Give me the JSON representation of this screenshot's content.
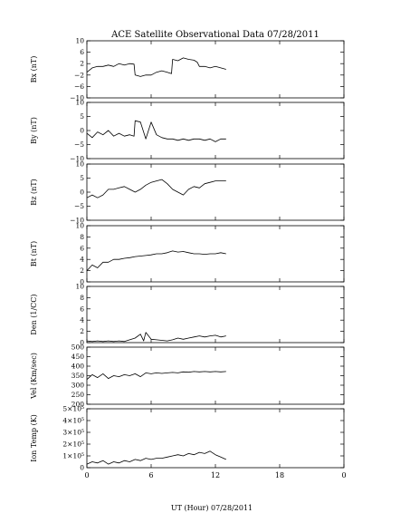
{
  "title": "ACE Satellite Observational Data   07/28/2011",
  "xlabel": "UT (Hour)   07/28/2011",
  "xaxis": {
    "range": [
      0,
      24
    ],
    "ticks": [
      0,
      6,
      12,
      18,
      0
    ],
    "tick_values": [
      0,
      6,
      12,
      18,
      24
    ]
  },
  "chart_data": [
    {
      "type": "line",
      "ylabel": "Bx (nT)",
      "ylim": [
        -10,
        10
      ],
      "yticks": [
        10,
        6,
        2,
        -2,
        -6,
        -10
      ],
      "ytick_labels": [
        "10",
        "6",
        "2",
        "−2",
        "−6",
        "−10"
      ],
      "x": [
        0,
        0.5,
        1,
        1.5,
        2,
        2.5,
        3,
        3.5,
        4,
        4.4,
        4.5,
        5,
        5.5,
        6,
        6.5,
        7,
        7.5,
        7.9,
        8,
        8.5,
        9,
        9.5,
        10,
        10.3,
        10.5,
        11,
        11.5,
        12,
        12.5,
        13
      ],
      "values": [
        -1,
        0.5,
        1,
        1,
        1.5,
        1,
        2,
        1.5,
        2,
        1.8,
        -2,
        -2.5,
        -2,
        -2,
        -1,
        -0.5,
        -1,
        -1.5,
        3.5,
        3,
        4,
        3.5,
        3.2,
        2.5,
        1,
        1,
        0.5,
        1,
        0.5,
        0
      ]
    },
    {
      "type": "line",
      "ylabel": "By (nT)",
      "ylim": [
        -10,
        10
      ],
      "yticks": [
        10,
        5,
        0,
        -5,
        -10
      ],
      "ytick_labels": [
        "10",
        "5",
        "0",
        "−5",
        "−10"
      ],
      "x": [
        0,
        0.5,
        1,
        1.5,
        2,
        2.5,
        3,
        3.5,
        4,
        4.4,
        4.5,
        5,
        5.5,
        6,
        6.5,
        7,
        7.5,
        8,
        8.5,
        9,
        9.5,
        10,
        10.5,
        11,
        11.5,
        12,
        12.5,
        13
      ],
      "values": [
        -1,
        -2.5,
        -0.5,
        -1.5,
        0,
        -2,
        -1,
        -2,
        -1.5,
        -2,
        3.5,
        3,
        -3,
        3,
        -1.5,
        -2.5,
        -3,
        -3,
        -3.5,
        -3,
        -3.5,
        -3,
        -3,
        -3.5,
        -3,
        -4,
        -3,
        -3
      ]
    },
    {
      "type": "line",
      "ylabel": "Bz (nT)",
      "ylim": [
        -10,
        10
      ],
      "yticks": [
        10,
        5,
        0,
        -5,
        -10
      ],
      "ytick_labels": [
        "10",
        "5",
        "0",
        "−5",
        "−10"
      ],
      "x": [
        0,
        0.5,
        1,
        1.5,
        2,
        2.5,
        3,
        3.5,
        4,
        4.5,
        5,
        5.5,
        6,
        6.5,
        7,
        7.5,
        8,
        8.5,
        9,
        9.5,
        10,
        10.5,
        11,
        11.5,
        12,
        12.5,
        13
      ],
      "values": [
        -2,
        -1,
        -2,
        -1,
        1,
        1,
        1.5,
        2,
        1,
        0,
        1,
        2.5,
        3.5,
        4,
        4.5,
        3,
        1,
        0,
        -1,
        1,
        2,
        1.5,
        3,
        3.5,
        4,
        4,
        4
      ]
    },
    {
      "type": "line",
      "ylabel": "Bt (nT)",
      "ylim": [
        0,
        10
      ],
      "yticks": [
        10,
        8,
        6,
        4,
        2,
        0
      ],
      "ytick_labels": [
        "10",
        "8",
        "6",
        "4",
        "2",
        "0"
      ],
      "x": [
        0,
        0.5,
        1,
        1.5,
        2,
        2.5,
        3,
        3.5,
        4,
        4.5,
        5,
        5.5,
        6,
        6.5,
        7,
        7.5,
        8,
        8.5,
        9,
        9.5,
        10,
        10.5,
        11,
        11.5,
        12,
        12.5,
        13
      ],
      "values": [
        2,
        3,
        2.5,
        3.5,
        3.5,
        4,
        4,
        4.2,
        4.3,
        4.5,
        4.6,
        4.7,
        4.8,
        5,
        5,
        5.2,
        5.5,
        5.3,
        5.4,
        5.2,
        5,
        5,
        4.9,
        5,
        5,
        5.2,
        5
      ]
    },
    {
      "type": "line",
      "ylabel": "Den (1/CC)",
      "ylim": [
        0,
        10
      ],
      "yticks": [
        10,
        8,
        6,
        4,
        2,
        0
      ],
      "ytick_labels": [
        "10",
        "8",
        "6",
        "4",
        "2",
        "0"
      ],
      "x": [
        0,
        0.5,
        1,
        1.5,
        2,
        2.5,
        3,
        3.5,
        4,
        4.5,
        5,
        5.3,
        5.5,
        6,
        6.5,
        7,
        7.5,
        8,
        8.5,
        9,
        9.5,
        10,
        10.5,
        11,
        11.5,
        12,
        12.5,
        13
      ],
      "values": [
        0.3,
        0.2,
        0.3,
        0.2,
        0.3,
        0.2,
        0.3,
        0.2,
        0.5,
        0.8,
        1.5,
        0.3,
        1.8,
        0.6,
        0.5,
        0.4,
        0.3,
        0.5,
        0.8,
        0.6,
        0.8,
        1,
        1.2,
        1,
        1.2,
        1.3,
        1,
        1.2
      ]
    },
    {
      "type": "line",
      "ylabel": "Vel (Km/sec)",
      "ylim": [
        200,
        500
      ],
      "yticks": [
        500,
        450,
        400,
        350,
        300,
        250,
        200
      ],
      "ytick_labels": [
        "500",
        "450",
        "400",
        "350",
        "300",
        "250",
        "200"
      ],
      "x": [
        0,
        0.5,
        1,
        1.5,
        2,
        2.5,
        3,
        3.5,
        4,
        4.5,
        5,
        5.5,
        6,
        6.5,
        7,
        7.5,
        8,
        8.5,
        9,
        9.5,
        10,
        10.5,
        11,
        11.5,
        12,
        12.5,
        13
      ],
      "values": [
        330,
        355,
        340,
        360,
        335,
        350,
        345,
        355,
        350,
        360,
        345,
        365,
        360,
        365,
        362,
        365,
        367,
        365,
        370,
        368,
        372,
        370,
        372,
        370,
        372,
        370,
        372
      ]
    },
    {
      "type": "line",
      "ylabel": "Ion Temp (K)",
      "ylim": [
        0,
        500000
      ],
      "yticks": [
        500000,
        400000,
        300000,
        200000,
        100000,
        0
      ],
      "ytick_labels": [
        "5×10⁵",
        "4×10⁵",
        "3×10⁵",
        "2×10⁵",
        "1×10⁵",
        "0"
      ],
      "x": [
        0,
        0.5,
        1,
        1.5,
        2,
        2.5,
        3,
        3.5,
        4,
        4.5,
        5,
        5.5,
        6,
        6.5,
        7,
        7.5,
        8,
        8.5,
        9,
        9.5,
        10,
        10.5,
        11,
        11.5,
        12,
        12.5,
        13
      ],
      "values": [
        30000,
        50000,
        40000,
        60000,
        30000,
        50000,
        40000,
        60000,
        50000,
        70000,
        60000,
        80000,
        70000,
        80000,
        80000,
        90000,
        100000,
        110000,
        100000,
        120000,
        110000,
        130000,
        120000,
        140000,
        110000,
        90000,
        70000
      ]
    }
  ]
}
